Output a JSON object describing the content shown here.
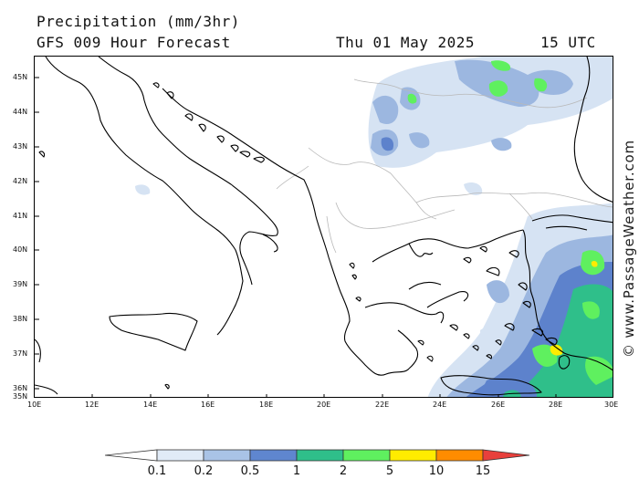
{
  "header": {
    "title": "Precipitation (mm/3hr)",
    "subtitle": "GFS 009 Hour Forecast",
    "date": "Thu 01 May 2025",
    "time": "15 UTC"
  },
  "credit": "© www.PassageWeather.com",
  "axes": {
    "lat_labels": [
      "45N",
      "44N",
      "43N",
      "42N",
      "41N",
      "40N",
      "39N",
      "38N",
      "37N",
      "36N",
      "35N"
    ],
    "lon_labels": [
      "10E",
      "12E",
      "14E",
      "16E",
      "18E",
      "20E",
      "22E",
      "24E",
      "26E",
      "28E",
      "30E"
    ]
  },
  "legend": {
    "labels": [
      "0.1",
      "0.2",
      "0.5",
      "1",
      "2",
      "5",
      "10",
      "15"
    ],
    "colors": [
      "#ffffff",
      "#e1ebf7",
      "#a9c3e6",
      "#5f86cf",
      "#2fbf8a",
      "#5ff05f",
      "#ffec00",
      "#ff8c00",
      "#e8403c"
    ]
  },
  "colors": {
    "light": "#d6e3f3",
    "medium": "#9cb7e0",
    "blue": "#5d82cc",
    "teal": "#2fbf8a",
    "green": "#5ff05f",
    "yellow": "#ffec00",
    "orange": "#ff8c00"
  }
}
